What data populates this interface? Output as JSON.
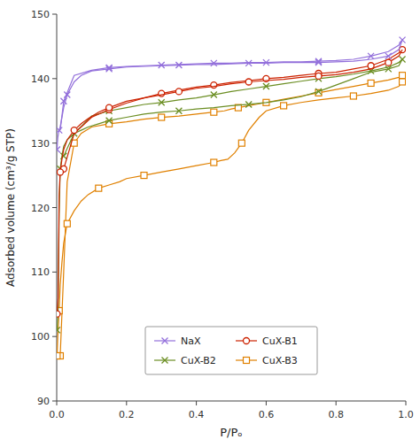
{
  "chart_data": {
    "type": "line",
    "xlabel": "P/Pₒ",
    "ylabel": "Adsorbed volume (cm³/g STP)",
    "xlim": [
      0.0,
      1.0
    ],
    "ylim": [
      90,
      150
    ],
    "xticks": [
      {
        "value": 0.0,
        "label": "0.0"
      },
      0.2,
      0.4,
      0.6,
      0.8,
      {
        "value": 1.0,
        "label": "1.0"
      }
    ],
    "yticks": [
      90,
      100,
      110,
      120,
      130,
      140,
      150
    ],
    "grid": false,
    "legend": "bottom",
    "series": [
      {
        "name": "NaX",
        "color": "#9370db",
        "marker": "x",
        "x": [
          0.001,
          0.002,
          0.003,
          0.005,
          0.007,
          0.01,
          0.015,
          0.02,
          0.03,
          0.05,
          0.07,
          0.1,
          0.15,
          0.2,
          0.25,
          0.3,
          0.35,
          0.4,
          0.45,
          0.5,
          0.55,
          0.6,
          0.65,
          0.7,
          0.75,
          0.8,
          0.85,
          0.9,
          0.95,
          0.98,
          0.99
        ],
        "values": [
          129.0,
          130.0,
          130.8,
          131.5,
          132.0,
          132.5,
          134.0,
          135.5,
          137.5,
          139.5,
          140.5,
          141.2,
          141.5,
          141.8,
          141.9,
          142.0,
          142.1,
          142.2,
          142.2,
          142.3,
          142.4,
          142.4,
          142.5,
          142.5,
          142.5,
          142.6,
          142.7,
          143.0,
          143.5,
          144.5,
          146.0
        ]
      },
      {
        "color": "#9370db",
        "marker": "x",
        "x": [
          0.99,
          0.98,
          0.95,
          0.9,
          0.85,
          0.8,
          0.75,
          0.7,
          0.65,
          0.6,
          0.55,
          0.5,
          0.45,
          0.4,
          0.35,
          0.3,
          0.25,
          0.2,
          0.15,
          0.1,
          0.05,
          0.02,
          0.01
        ],
        "values": [
          146.0,
          145.2,
          144.2,
          143.5,
          143.0,
          142.8,
          142.7,
          142.6,
          142.6,
          142.5,
          142.5,
          142.4,
          142.4,
          142.3,
          142.2,
          142.1,
          142.0,
          141.9,
          141.7,
          141.3,
          140.5,
          136.5,
          132.0
        ]
      },
      {
        "name": "CuX-B1",
        "color": "#cc2200",
        "marker": "circle",
        "x": [
          0.001,
          0.002,
          0.004,
          0.007,
          0.01,
          0.015,
          0.02,
          0.03,
          0.05,
          0.07,
          0.09,
          0.12,
          0.15,
          0.2,
          0.25,
          0.3,
          0.35,
          0.4,
          0.45,
          0.5,
          0.55,
          0.6,
          0.65,
          0.7,
          0.75,
          0.8,
          0.85,
          0.9,
          0.95,
          0.98,
          0.99
        ],
        "values": [
          103.5,
          104.5,
          106.0,
          122.0,
          125.5,
          127.5,
          129.0,
          130.5,
          132.0,
          133.0,
          133.8,
          134.8,
          135.5,
          136.5,
          137.0,
          137.5,
          138.0,
          138.5,
          138.8,
          139.2,
          139.5,
          139.7,
          139.9,
          140.2,
          140.4,
          140.6,
          141.0,
          141.5,
          142.5,
          143.5,
          144.5
        ]
      },
      {
        "color": "#cc2200",
        "marker": "circle",
        "x": [
          0.99,
          0.98,
          0.95,
          0.9,
          0.85,
          0.8,
          0.75,
          0.7,
          0.65,
          0.6,
          0.55,
          0.5,
          0.45,
          0.4,
          0.35,
          0.3,
          0.25,
          0.2,
          0.15,
          0.1,
          0.05,
          0.02
        ],
        "values": [
          144.5,
          144.0,
          143.0,
          142.0,
          141.5,
          141.0,
          140.8,
          140.5,
          140.2,
          140.0,
          139.7,
          139.4,
          139.0,
          138.7,
          138.2,
          137.7,
          137.0,
          136.2,
          135.2,
          134.0,
          131.5,
          126.0
        ]
      },
      {
        "name": "CuX-B2",
        "color": "#6b8e23",
        "marker": "x",
        "x": [
          0.001,
          0.002,
          0.004,
          0.007,
          0.01,
          0.015,
          0.02,
          0.03,
          0.05,
          0.07,
          0.09,
          0.12,
          0.15,
          0.2,
          0.25,
          0.3,
          0.35,
          0.4,
          0.45,
          0.5,
          0.55,
          0.6,
          0.65,
          0.7,
          0.75,
          0.8,
          0.85,
          0.9,
          0.95,
          0.98,
          0.99
        ],
        "values": [
          101.0,
          102.0,
          104.0,
          119.0,
          126.0,
          128.0,
          129.5,
          130.5,
          131.5,
          132.0,
          132.5,
          133.0,
          133.5,
          134.0,
          134.5,
          134.8,
          135.0,
          135.3,
          135.5,
          135.8,
          136.0,
          136.3,
          136.7,
          137.2,
          138.0,
          139.0,
          140.0,
          141.0,
          141.5,
          142.0,
          143.0
        ]
      },
      {
        "color": "#6b8e23",
        "marker": "x",
        "x": [
          0.99,
          0.98,
          0.95,
          0.9,
          0.85,
          0.8,
          0.75,
          0.7,
          0.65,
          0.6,
          0.55,
          0.5,
          0.45,
          0.4,
          0.35,
          0.3,
          0.25,
          0.2,
          0.15,
          0.1,
          0.05,
          0.02
        ],
        "values": [
          143.0,
          142.5,
          141.8,
          141.2,
          140.7,
          140.3,
          140.0,
          139.6,
          139.2,
          138.8,
          138.4,
          138.0,
          137.5,
          137.0,
          136.7,
          136.3,
          136.0,
          135.5,
          135.0,
          134.2,
          131.5,
          128.0
        ]
      },
      {
        "name": "CuX-B3",
        "color": "#e08000",
        "marker": "square",
        "x": [
          0.001,
          0.002,
          0.003,
          0.005,
          0.007,
          0.01,
          0.015,
          0.02,
          0.03,
          0.05,
          0.07,
          0.09,
          0.12,
          0.15,
          0.18,
          0.2,
          0.25,
          0.3,
          0.35,
          0.4,
          0.45,
          0.47,
          0.49,
          0.51,
          0.53,
          0.55,
          0.58,
          0.6,
          0.65,
          0.7,
          0.75,
          0.8,
          0.85,
          0.9,
          0.95,
          0.98,
          0.99
        ],
        "values": [
          97.0,
          98.5,
          100.0,
          102.0,
          104.0,
          108.0,
          111.5,
          114.5,
          117.5,
          119.5,
          121.0,
          122.0,
          123.0,
          123.5,
          124.0,
          124.5,
          125.0,
          125.5,
          126.0,
          126.5,
          127.0,
          127.3,
          127.5,
          128.5,
          130.0,
          132.0,
          134.0,
          135.0,
          135.8,
          136.3,
          136.7,
          137.0,
          137.3,
          137.7,
          138.2,
          138.8,
          139.5
        ]
      },
      {
        "color": "#e08000",
        "marker": "square",
        "x": [
          0.99,
          0.98,
          0.95,
          0.9,
          0.85,
          0.8,
          0.75,
          0.7,
          0.65,
          0.6,
          0.57,
          0.55,
          0.52,
          0.5,
          0.48,
          0.45,
          0.4,
          0.35,
          0.3,
          0.25,
          0.2,
          0.15,
          0.1,
          0.07,
          0.05,
          0.03,
          0.02,
          0.01
        ],
        "values": [
          140.5,
          140.2,
          139.8,
          139.3,
          138.8,
          138.3,
          137.8,
          137.3,
          136.8,
          136.3,
          136.0,
          135.8,
          135.5,
          135.3,
          135.0,
          134.8,
          134.5,
          134.2,
          134.0,
          133.7,
          133.3,
          133.0,
          132.5,
          131.5,
          130.0,
          124.0,
          110.0,
          97.0
        ]
      }
    ]
  }
}
